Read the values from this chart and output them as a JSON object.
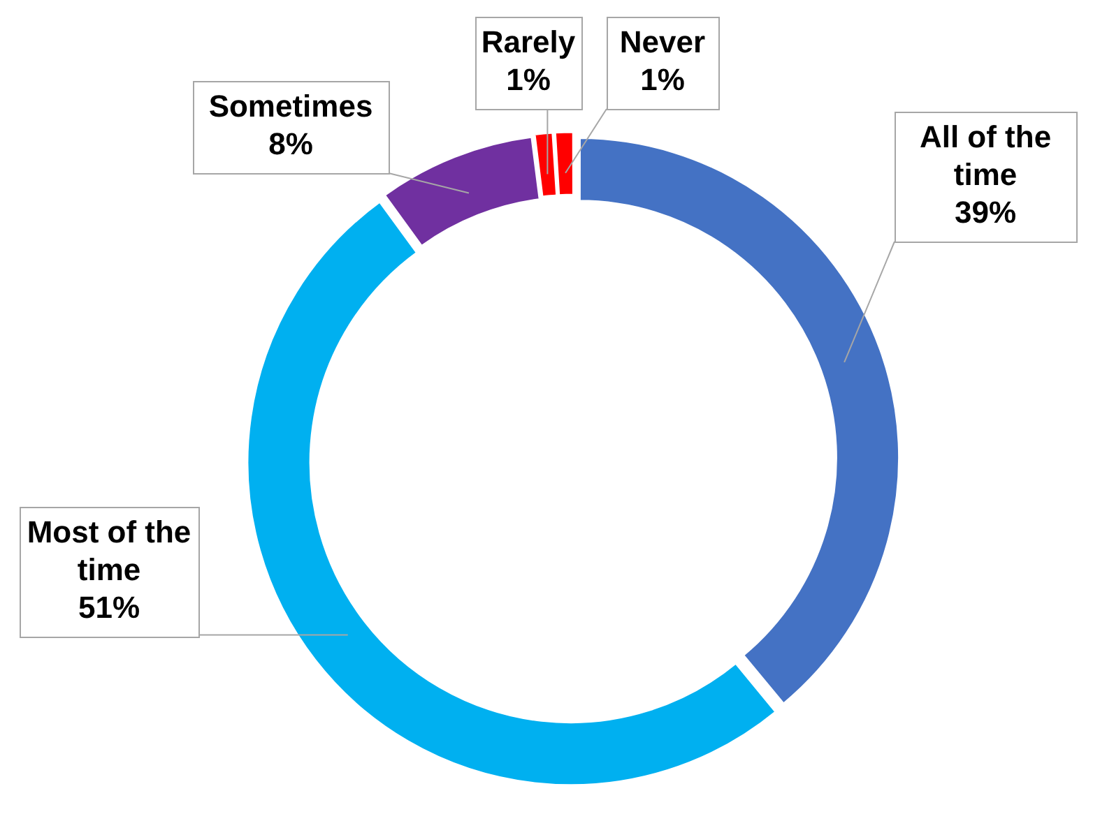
{
  "chart_data": {
    "type": "donut",
    "categories": [
      "All of the time",
      "Most of the time",
      "Sometimes",
      "Rarely",
      "Never"
    ],
    "values": [
      39,
      51,
      8,
      1,
      1
    ],
    "colors": [
      "#4472c4",
      "#00b0f0",
      "#7030a0",
      "#ff0000",
      "#ff0000"
    ],
    "value_labels": [
      "39%",
      "51%",
      "8%",
      "1%",
      "1%"
    ]
  }
}
